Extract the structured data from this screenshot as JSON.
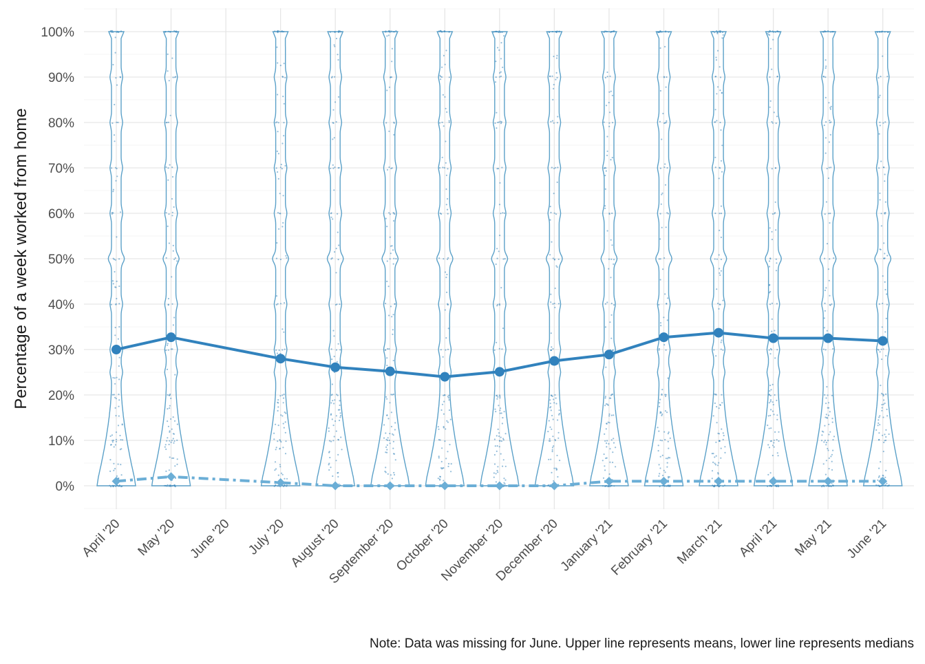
{
  "chart_data": {
    "type": "violin-line",
    "ylabel": "Percentage of a week worked from home",
    "xlabel": "",
    "caption": "Note: Data was missing for June. Upper line represents means, lower line represents medians",
    "ylim": [
      0,
      1
    ],
    "y_ticks": [
      "0%",
      "10%",
      "20%",
      "30%",
      "40%",
      "50%",
      "60%",
      "70%",
      "80%",
      "90%",
      "100%"
    ],
    "y_tick_values": [
      0,
      0.1,
      0.2,
      0.3,
      0.4,
      0.5,
      0.6,
      0.7,
      0.8,
      0.9,
      1.0
    ],
    "categories": [
      "April '20",
      "May '20",
      "June '20",
      "July '20",
      "August '20",
      "September '20",
      "October '20",
      "November '20",
      "December '20",
      "January '21",
      "February '21",
      "March '21",
      "April '21",
      "May '21",
      "June '21"
    ],
    "has_data": [
      true,
      true,
      false,
      true,
      true,
      true,
      true,
      true,
      true,
      true,
      true,
      true,
      true,
      true,
      true
    ],
    "series": [
      {
        "name": "Mean",
        "values": [
          0.3,
          0.327,
          null,
          0.28,
          0.261,
          0.252,
          0.24,
          0.251,
          0.275,
          0.289,
          0.327,
          0.337,
          0.325,
          0.325,
          0.319
        ]
      },
      {
        "name": "Median",
        "values": [
          0.01,
          0.02,
          null,
          0.007,
          0.0,
          0.0,
          0.0,
          0.0,
          0.0,
          0.01,
          0.01,
          0.01,
          0.01,
          0.01,
          0.01
        ]
      }
    ],
    "colors": {
      "mean": "#3182bd",
      "median": "#6baed6",
      "violin": "#5aa0c8",
      "points": "#3a87bc",
      "grid": "#e6e6e6"
    },
    "grid": true,
    "legend": "none"
  }
}
